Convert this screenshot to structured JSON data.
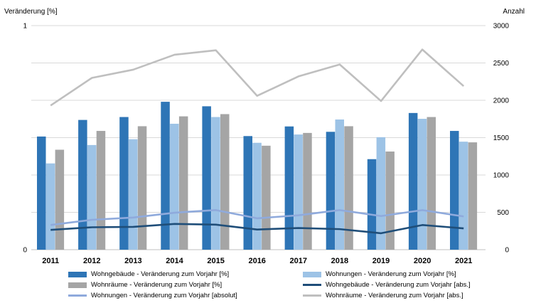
{
  "chart_data": {
    "type": "bar",
    "ylabel_left": "Veränderung [%]",
    "ylabel_right": "Anzahl",
    "left_axis": {
      "ticks": [
        "0",
        "1"
      ],
      "ylim": [
        0,
        1
      ]
    },
    "right_axis": {
      "ticks": [
        "0",
        "500",
        "1000",
        "1500",
        "2000",
        "2500",
        "3000"
      ],
      "ylim": [
        0,
        3000
      ]
    },
    "categories": [
      "2011",
      "2012",
      "2013",
      "2014",
      "2015",
      "2016",
      "2017",
      "2018",
      "2019",
      "2020",
      "2021"
    ],
    "bar_series": [
      {
        "name": "Wohngebäude - Veränderung zum Vorjahr [%]",
        "color": "#2e75b6",
        "values": [
          0.505,
          0.579,
          0.592,
          0.66,
          0.64,
          0.507,
          0.55,
          0.526,
          0.404,
          0.61,
          0.53
        ]
      },
      {
        "name": "Wohnungen - Veränderung zum Vorjahr [%]",
        "color": "#9dc3e6",
        "values": [
          0.385,
          0.467,
          0.493,
          0.562,
          0.592,
          0.477,
          0.514,
          0.581,
          0.502,
          0.584,
          0.482
        ]
      },
      {
        "name": "Wohnräume - Veränderung zum Vorjahr [%]",
        "color": "#a5a5a5",
        "values": [
          0.446,
          0.53,
          0.551,
          0.595,
          0.605,
          0.464,
          0.521,
          0.551,
          0.438,
          0.592,
          0.479
        ]
      }
    ],
    "line_series": [
      {
        "name": "Wohngebäude - Veränderung zum Vorjahr [abs.]",
        "color": "#1f4e79",
        "values": [
          265,
          300,
          305,
          345,
          335,
          270,
          290,
          275,
          220,
          330,
          285
        ]
      },
      {
        "name": "Wohnungen - Veränderung zum Vorjahr [absolut]",
        "color": "#8faadc",
        "values": [
          330,
          400,
          430,
          495,
          530,
          420,
          460,
          530,
          450,
          530,
          445
        ]
      },
      {
        "name": "Wohnräume - Veränderung zum Vorjahr [abs.]",
        "color": "#bfbfbf",
        "values": [
          1930,
          2300,
          2410,
          2610,
          2670,
          2060,
          2320,
          2480,
          1990,
          2680,
          2190
        ]
      }
    ]
  },
  "legend": [
    {
      "label": "Wohngebäude - Veränderung zum Vorjahr [%]",
      "kind": "bar",
      "color": "#2e75b6"
    },
    {
      "label": "Wohnungen - Veränderung zum Vorjahr [%]",
      "kind": "bar",
      "color": "#9dc3e6"
    },
    {
      "label": "Wohnräume - Veränderung zum Vorjahr [%]",
      "kind": "bar",
      "color": "#a5a5a5"
    },
    {
      "label": "Wohngebäude - Veränderung zum Vorjahr [abs.]",
      "kind": "line",
      "color": "#1f4e79"
    },
    {
      "label": "Wohnungen - Veränderung zum Vorjahr [absolut]",
      "kind": "line",
      "color": "#8faadc"
    },
    {
      "label": "Wohnräume - Veränderung zum Vorjahr [abs.]",
      "kind": "line",
      "color": "#bfbfbf"
    }
  ]
}
